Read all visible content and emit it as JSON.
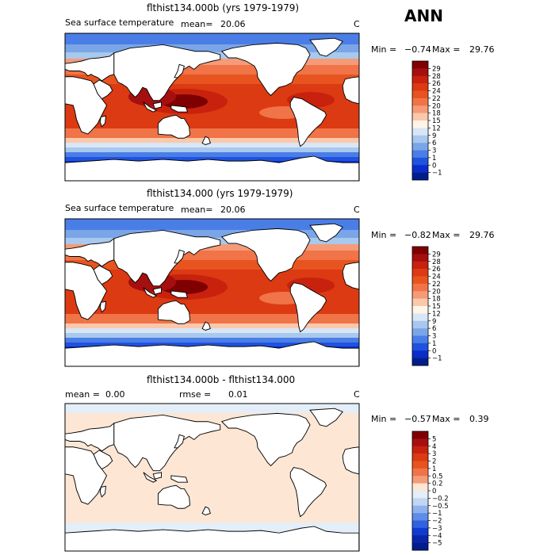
{
  "main_title": "ANN",
  "panels": [
    {
      "title": "flthist134.000b (yrs 1979-1979)",
      "variable": "Sea surface temperature",
      "mean_label": "mean=",
      "mean_value": "20.06",
      "units": "C",
      "min_label": "Min =",
      "min_value": "−0.74",
      "max_label": "Max =",
      "max_value": "29.76",
      "colorbar_labels": [
        "29",
        "28",
        "26",
        "24",
        "22",
        "20",
        "18",
        "15",
        "12",
        "9",
        "6",
        "3",
        "1",
        "0",
        "−1"
      ],
      "colorbar_colors": [
        "#7f0000",
        "#a50f0f",
        "#c8220e",
        "#dc3a12",
        "#e8541f",
        "#f07448",
        "#f59b78",
        "#fac8aa",
        "#fff4ea",
        "#d8e6f6",
        "#a8c8ee",
        "#7aa6e8",
        "#4a7ee6",
        "#1f52df",
        "#0a2cc8",
        "#001e8a"
      ]
    },
    {
      "title": "flthist134.000 (yrs 1979-1979)",
      "variable": "Sea surface temperature",
      "mean_label": "mean=",
      "mean_value": "20.06",
      "units": "C",
      "min_label": "Min =",
      "min_value": "−0.82",
      "max_label": "Max =",
      "max_value": "29.76",
      "colorbar_labels": [
        "29",
        "28",
        "26",
        "24",
        "22",
        "20",
        "18",
        "15",
        "12",
        "9",
        "6",
        "3",
        "1",
        "0",
        "−1"
      ],
      "colorbar_colors": [
        "#7f0000",
        "#a50f0f",
        "#c8220e",
        "#dc3a12",
        "#e8541f",
        "#f07448",
        "#f59b78",
        "#fac8aa",
        "#fff4ea",
        "#d8e6f6",
        "#a8c8ee",
        "#7aa6e8",
        "#4a7ee6",
        "#1f52df",
        "#0a2cc8",
        "#001e8a"
      ]
    },
    {
      "title": "flthist134.000b - flthist134.000",
      "mean_label": "mean =",
      "mean_value": "0.00",
      "rmse_label": "rmse =",
      "rmse_value": "0.01",
      "units": "C",
      "min_label": "Min =",
      "min_value": "−0.57",
      "max_label": "Max =",
      "max_value": "0.39",
      "colorbar_labels": [
        "5",
        "4",
        "3",
        "2",
        "1",
        "0.5",
        "0.2",
        "0",
        "−0.2",
        "−0.5",
        "−1",
        "−2",
        "−3",
        "−4",
        "−5"
      ],
      "colorbar_colors": [
        "#7f0000",
        "#a50f0f",
        "#c8220e",
        "#dc3a12",
        "#e8541f",
        "#f07448",
        "#f59b78",
        "#fde6d4",
        "#e4eef9",
        "#c0d6f2",
        "#8fb2ec",
        "#5e8ce6",
        "#3262df",
        "#0f3ccf",
        "#0a25a8",
        "#001e8a"
      ]
    }
  ],
  "colors": {
    "land": "#ffffff",
    "coast": "#000000",
    "frame": "#000000",
    "diff_fill": "#fde6d4",
    "diff_ice": "#e4eef9"
  }
}
